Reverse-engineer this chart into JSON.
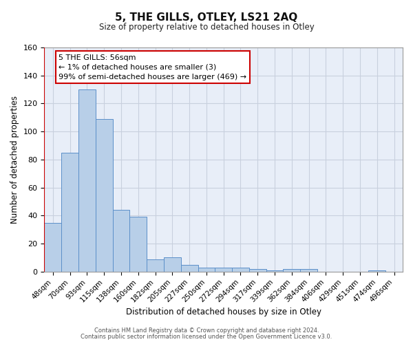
{
  "title": "5, THE GILLS, OTLEY, LS21 2AQ",
  "subtitle": "Size of property relative to detached houses in Otley",
  "xlabel": "Distribution of detached houses by size in Otley",
  "ylabel": "Number of detached properties",
  "bar_values": [
    35,
    85,
    130,
    109,
    44,
    39,
    9,
    10,
    5,
    3,
    3,
    3,
    2,
    1,
    2,
    2,
    0,
    0,
    0,
    1,
    0
  ],
  "bin_labels": [
    "48sqm",
    "70sqm",
    "93sqm",
    "115sqm",
    "138sqm",
    "160sqm",
    "182sqm",
    "205sqm",
    "227sqm",
    "250sqm",
    "272sqm",
    "294sqm",
    "317sqm",
    "339sqm",
    "362sqm",
    "384sqm",
    "406sqm",
    "429sqm",
    "451sqm",
    "474sqm",
    "496sqm"
  ],
  "bar_color": "#b8cfe8",
  "bar_edge_color": "#5b8fc9",
  "bg_color": "#e8eef8",
  "grid_color": "#c8d0de",
  "marker_color": "#cc0000",
  "annotation_title": "5 THE GILLS: 56sqm",
  "annotation_line1": "← 1% of detached houses are smaller (3)",
  "annotation_line2": "99% of semi-detached houses are larger (469) →",
  "annotation_box_color": "#ffffff",
  "annotation_border_color": "#cc0000",
  "ylim": [
    0,
    160
  ],
  "yticks": [
    0,
    20,
    40,
    60,
    80,
    100,
    120,
    140,
    160
  ],
  "footer1": "Contains HM Land Registry data © Crown copyright and database right 2024.",
  "footer2": "Contains public sector information licensed under the Open Government Licence v3.0."
}
